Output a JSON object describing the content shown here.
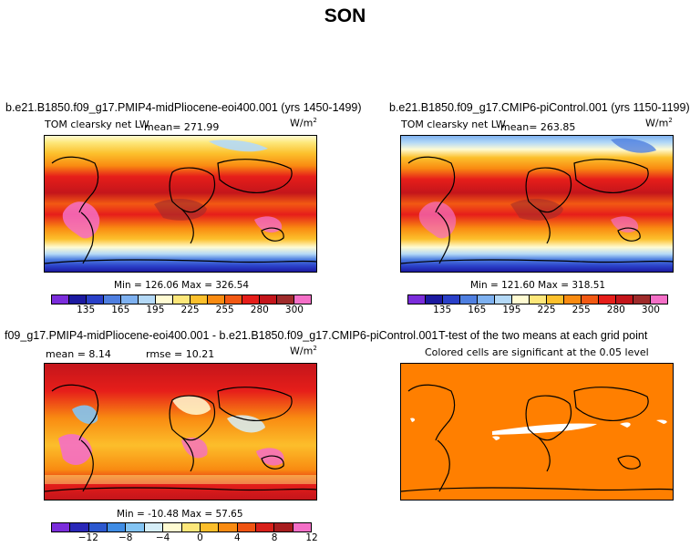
{
  "suptitle": "SON",
  "colors": {
    "lw_scale": [
      "#7b2ddb",
      "#1c1aa0",
      "#2a40c8",
      "#4f7fe0",
      "#7eb1f0",
      "#b4d9f7",
      "#fffbd2",
      "#fde77a",
      "#fcc02c",
      "#f98b11",
      "#f25913",
      "#e61e1a",
      "#c4151b",
      "#9f2b2b",
      "#f46fc7"
    ],
    "diff_scale": [
      "#7b2ddb",
      "#2a28b8",
      "#2c58cf",
      "#3f8ce4",
      "#83c4f3",
      "#d6eef8",
      "#fffbd2",
      "#fde77a",
      "#fcbe2b",
      "#f98b11",
      "#f05412",
      "#d8201a",
      "#a81d1f",
      "#f46fc7"
    ],
    "ttest_fill": "#ff7f00"
  },
  "panels": {
    "ctrl_test": {
      "title": "b.e21.B1850.f09_g17.PMIP4-midPliocene-eoi400.001 (yrs 1450-1499)",
      "variable": "TOM clearsky net LW",
      "mean_label": "mean= 271.99",
      "units": "W/m",
      "units_exp": "2",
      "minmax": "Min = 126.06 Max = 326.54",
      "ticks": [
        "135",
        "165",
        "195",
        "225",
        "255",
        "280",
        "300"
      ]
    },
    "ctrl_base": {
      "title": "b.e21.B1850.f09_g17.CMIP6-piControl.001 (yrs 1150-1199)",
      "variable": "TOM clearsky net LW",
      "mean_label": "mean= 263.85",
      "units": "W/m",
      "units_exp": "2",
      "minmax": "Min = 121.60 Max = 318.51",
      "ticks": [
        "135",
        "165",
        "195",
        "225",
        "255",
        "280",
        "300"
      ]
    },
    "diff": {
      "title": "f09_g17.PMIP4-midPliocene-eoi400.001 - b.e21.B1850.f09_g17.CMIP6-piControl.001",
      "mean_label": "mean =    8.14",
      "rmse_label": "rmse =  10.21",
      "units": "W/m",
      "units_exp": "2",
      "minmax": "Min = -10.48 Max = 57.65",
      "ticks": [
        "−12",
        "−8",
        "−4",
        "0",
        "4",
        "8",
        "12"
      ]
    },
    "ttest": {
      "title": "T-test of the two means at each grid point",
      "subtitle": "Colored cells are significant at the 0.05 level"
    }
  },
  "chart_data": [
    {
      "type": "heatmap",
      "title": "b.e21.B1850.f09_g17.PMIP4-midPliocene-eoi400.001 (yrs 1450-1499)",
      "variable": "TOM clearsky net LW",
      "units": "W/m2",
      "mean": 271.99,
      "min": 126.06,
      "max": 326.54,
      "contour_levels": [
        135,
        150,
        165,
        180,
        195,
        210,
        225,
        240,
        255,
        270,
        280,
        290,
        300,
        310
      ],
      "colorbar_tick_labels": [
        135,
        165,
        195,
        225,
        255,
        280,
        300
      ],
      "zonal_pattern": [
        {
          "lat": 85,
          "value": 170
        },
        {
          "lat": 65,
          "value": 215
        },
        {
          "lat": 45,
          "value": 250
        },
        {
          "lat": 25,
          "value": 295
        },
        {
          "lat": 0,
          "value": 300
        },
        {
          "lat": -25,
          "value": 300
        },
        {
          "lat": -45,
          "value": 255
        },
        {
          "lat": -65,
          "value": 200
        },
        {
          "lat": -85,
          "value": 135
        }
      ]
    },
    {
      "type": "heatmap",
      "title": "b.e21.B1850.f09_g17.CMIP6-piControl.001 (yrs 1150-1199)",
      "variable": "TOM clearsky net LW",
      "units": "W/m2",
      "mean": 263.85,
      "min": 121.6,
      "max": 318.51,
      "contour_levels": [
        135,
        150,
        165,
        180,
        195,
        210,
        225,
        240,
        255,
        270,
        280,
        290,
        300,
        310
      ],
      "colorbar_tick_labels": [
        135,
        165,
        195,
        225,
        255,
        280,
        300
      ],
      "zonal_pattern": [
        {
          "lat": 85,
          "value": 160
        },
        {
          "lat": 65,
          "value": 205
        },
        {
          "lat": 45,
          "value": 245
        },
        {
          "lat": 25,
          "value": 290
        },
        {
          "lat": 0,
          "value": 295
        },
        {
          "lat": -25,
          "value": 295
        },
        {
          "lat": -45,
          "value": 250
        },
        {
          "lat": -65,
          "value": 195
        },
        {
          "lat": -85,
          "value": 130
        }
      ]
    },
    {
      "type": "heatmap",
      "title": "f09_g17.PMIP4-midPliocene-eoi400.001 - b.e21.B1850.f09_g17.CMIP6-piControl.001",
      "units": "W/m2",
      "mean": 8.14,
      "rmse": 10.21,
      "min": -10.48,
      "max": 57.65,
      "contour_levels": [
        -14,
        -12,
        -10,
        -8,
        -6,
        -4,
        -2,
        0,
        2,
        4,
        6,
        8,
        10,
        12,
        14
      ],
      "colorbar_tick_labels": [
        -12,
        -8,
        -4,
        0,
        4,
        8,
        12
      ]
    },
    {
      "type": "heatmap",
      "title": "T-test of the two means at each grid point",
      "subtitle": "Colored cells are significant at the 0.05 level",
      "significant_fill": "#ff7f00",
      "not_significant_fill": "#ffffff"
    }
  ]
}
